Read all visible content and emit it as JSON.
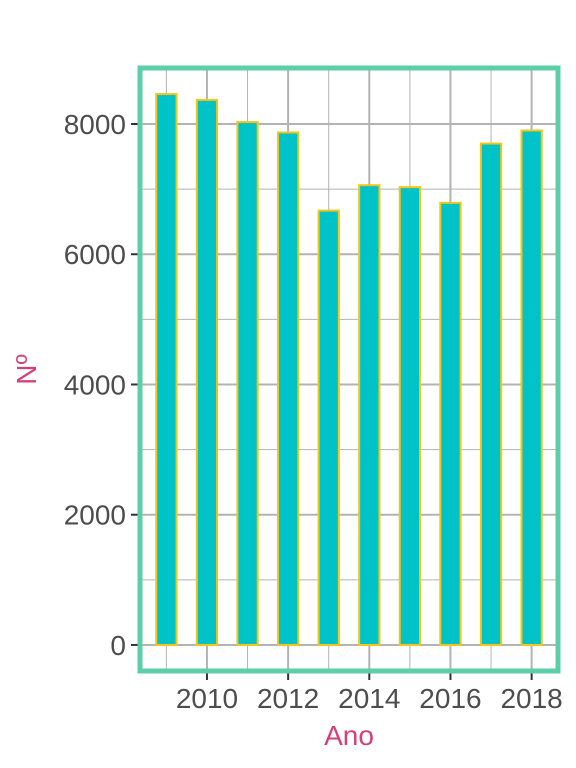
{
  "chart_data": {
    "type": "bar",
    "title": "",
    "xlabel": "Ano",
    "ylabel": "Nº",
    "x": [
      2009,
      2010,
      2011,
      2012,
      2013,
      2014,
      2015,
      2016,
      2017,
      2018
    ],
    "values": [
      8460,
      8370,
      8030,
      7870,
      6670,
      7060,
      7030,
      6790,
      7700,
      7900
    ],
    "x_ticks": [
      2010,
      2012,
      2014,
      2016,
      2018
    ],
    "y_ticks": [
      0,
      2000,
      4000,
      6000,
      8000
    ],
    "ylim": [
      -400,
      8860
    ],
    "xlim": [
      2008.35,
      2018.65
    ],
    "grid": true,
    "colors": {
      "bar_fill": "#00c3c8",
      "bar_stroke": "#f5c518",
      "panel_border": "#5ccfa8",
      "grid": "#b3b3b3",
      "axis_title": "#d6407a",
      "tick_label": "#4d4d4d"
    }
  }
}
